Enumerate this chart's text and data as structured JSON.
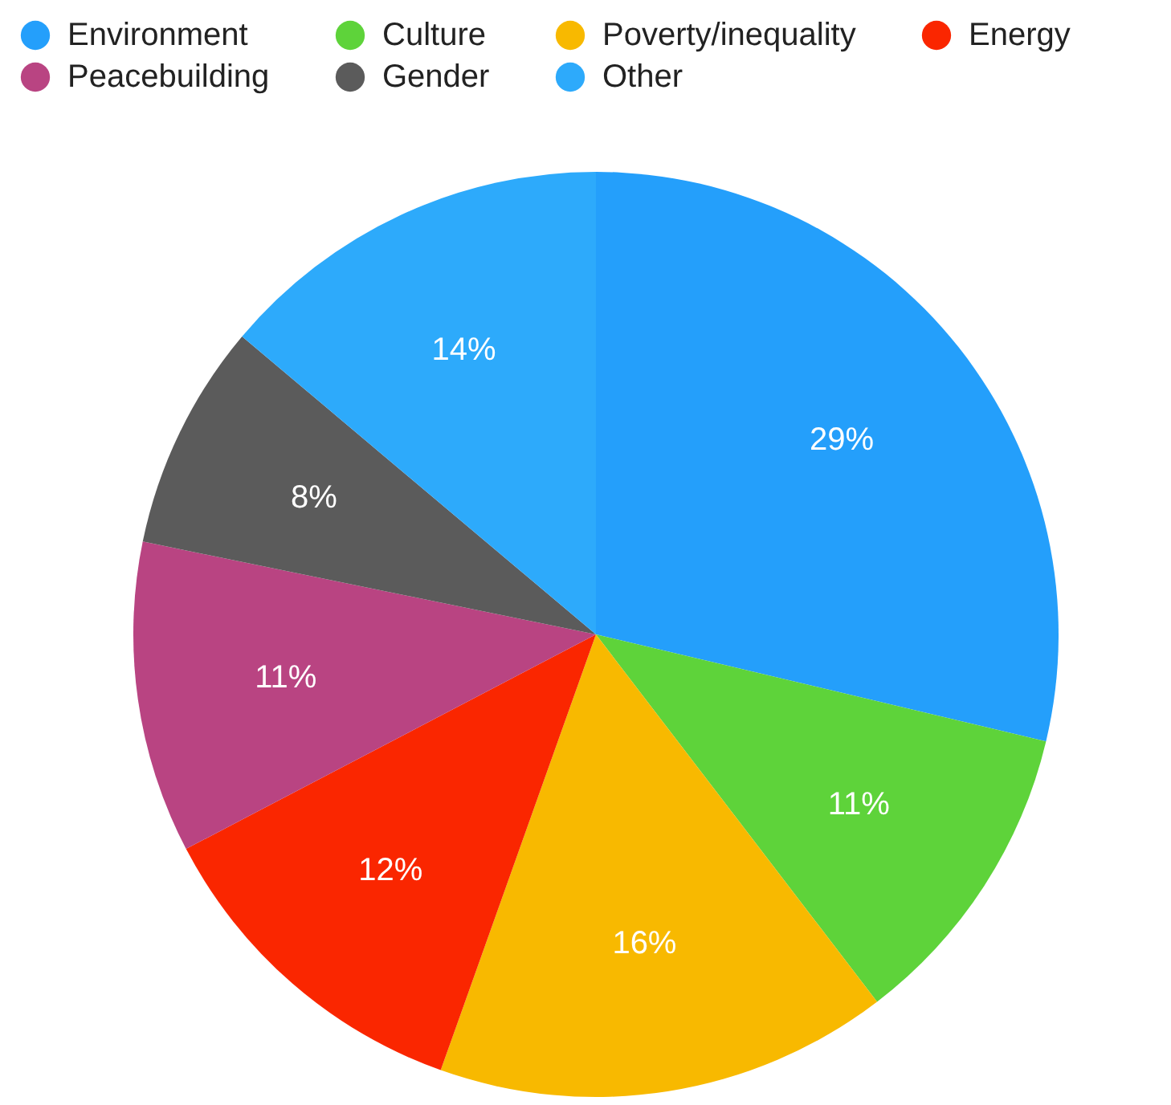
{
  "chart_data": {
    "type": "pie",
    "categories": [
      "Environment",
      "Culture",
      "Poverty/inequality",
      "Energy",
      "Peacebuilding",
      "Gender",
      "Other"
    ],
    "values": [
      29,
      11,
      16,
      12,
      11,
      8,
      14
    ],
    "colors": [
      "#249ffb",
      "#5ed33a",
      "#f8b900",
      "#fa2600",
      "#b94482",
      "#5b5b5b",
      "#2daafb"
    ],
    "value_labels": [
      "29%",
      "11%",
      "16%",
      "12%",
      "11%",
      "8%",
      "14%"
    ],
    "legend": "top"
  }
}
